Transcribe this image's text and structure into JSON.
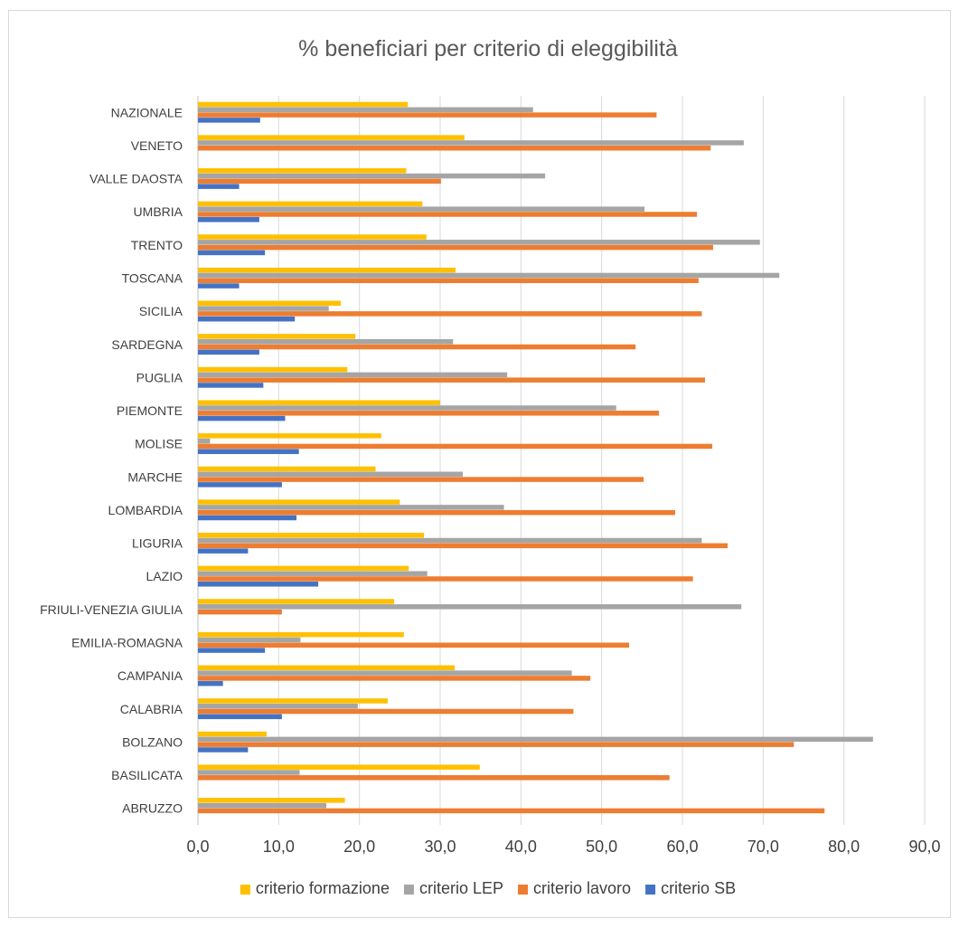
{
  "chart_data": {
    "type": "bar",
    "orientation": "horizontal",
    "title": "% beneficiari per criterio di eleggibilità",
    "xlabel": "",
    "ylabel": "",
    "xlim": [
      0,
      90
    ],
    "ticks": [
      "0,0",
      "10,0",
      "20,0",
      "30,0",
      "40,0",
      "50,0",
      "60,0",
      "70,0",
      "80,0",
      "90,0"
    ],
    "grid": true,
    "legend_position": "bottom",
    "categories": [
      "NAZIONALE",
      "VENETO",
      "VALLE DAOSTA",
      "UMBRIA",
      "TRENTO",
      "TOSCANA",
      "SICILIA",
      "SARDEGNA",
      "PUGLIA",
      "PIEMONTE",
      "MOLISE",
      "MARCHE",
      "LOMBARDIA",
      "LIGURIA",
      "LAZIO",
      "FRIULI-VENEZIA GIULIA",
      "EMILIA-ROMAGNA",
      "CAMPANIA",
      "CALABRIA",
      "BOLZANO",
      "BASILICATA",
      "ABRUZZO"
    ],
    "series": [
      {
        "name": "criterio formazione",
        "color": "#ffc000",
        "values": [
          26.0,
          33.0,
          25.8,
          27.8,
          28.3,
          31.9,
          17.7,
          19.5,
          18.5,
          30.0,
          22.7,
          22.0,
          25.0,
          28.0,
          26.1,
          24.3,
          25.5,
          31.8,
          23.5,
          8.5,
          34.9,
          18.2
        ]
      },
      {
        "name": "criterio LEP",
        "color": "#a5a5a5",
        "values": [
          41.5,
          67.6,
          43.0,
          55.3,
          69.6,
          72.0,
          16.2,
          31.6,
          38.3,
          51.8,
          1.5,
          32.8,
          37.9,
          62.4,
          28.4,
          67.3,
          12.7,
          46.3,
          19.8,
          83.6,
          12.6,
          15.9
        ]
      },
      {
        "name": "criterio lavoro",
        "color": "#ed7d31",
        "values": [
          56.8,
          63.5,
          30.1,
          61.8,
          63.8,
          62.0,
          62.4,
          54.2,
          62.8,
          57.1,
          63.7,
          55.2,
          59.1,
          65.6,
          61.3,
          10.4,
          53.4,
          48.6,
          46.5,
          73.8,
          58.4,
          77.6
        ]
      },
      {
        "name": "criterio SB",
        "color": "#4472c4",
        "values": [
          7.7,
          0,
          5.1,
          7.6,
          8.3,
          5.1,
          12.0,
          7.6,
          8.1,
          10.8,
          12.5,
          10.4,
          12.2,
          6.2,
          14.9,
          0,
          8.3,
          3.1,
          10.4,
          6.2,
          0,
          0
        ]
      }
    ]
  }
}
